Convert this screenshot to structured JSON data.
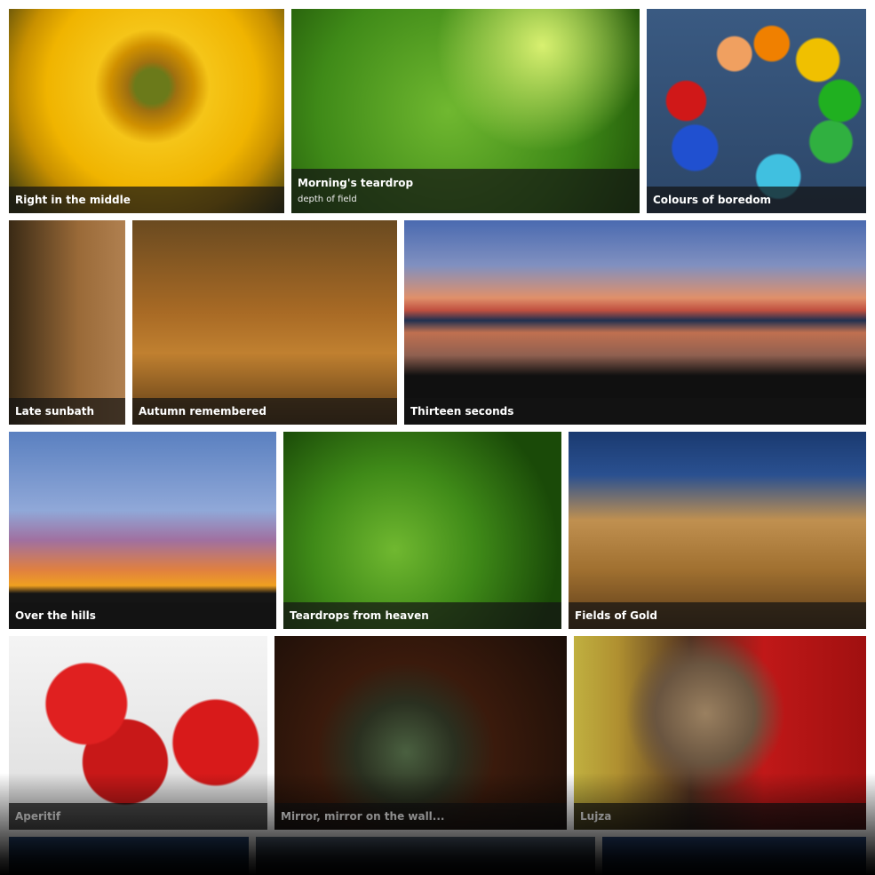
{
  "gallery": {
    "items": [
      {
        "title": "Right in the middle"
      },
      {
        "title": "Morning's teardrop",
        "subtitle": "depth of field"
      },
      {
        "title": "Colours of boredom"
      },
      {
        "title": "Late sunbath"
      },
      {
        "title": "Autumn remembered"
      },
      {
        "title": "Thirteen seconds"
      },
      {
        "title": "Over the hills"
      },
      {
        "title": "Teardrops from heaven"
      },
      {
        "title": "Fields of Gold"
      },
      {
        "title": "Aperitif"
      },
      {
        "title": "Mirror, mirror on the wall..."
      },
      {
        "title": "Lujza"
      }
    ]
  }
}
